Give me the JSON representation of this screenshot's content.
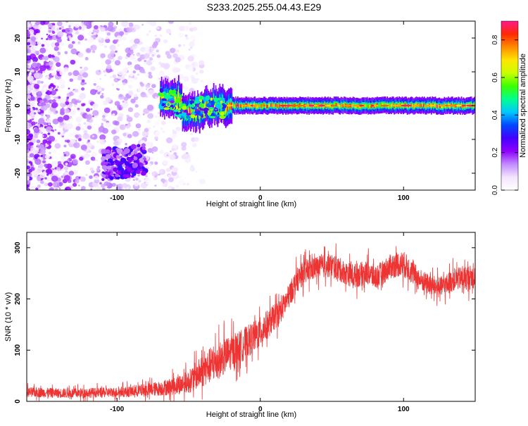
{
  "title": "S233.2025.255.04.43.E29",
  "chart_data": [
    {
      "type": "heatmap",
      "name": "spectrogram",
      "xlabel": "Height of straight line (km)",
      "ylabel": "Frequency (Hz)",
      "xlim": [
        -163,
        150
      ],
      "ylim": [
        -25,
        25
      ],
      "xticks": [
        -100,
        0,
        100
      ],
      "yticks": [
        -20,
        -10,
        0,
        10,
        20
      ],
      "xticklabels": [
        "-100",
        "0",
        "100"
      ],
      "yticklabels": [
        "-20",
        "-10",
        "0",
        "10",
        "20"
      ],
      "colorbar": {
        "label": "Normalized spectral amplitude",
        "range": [
          0,
          0.9
        ],
        "ticks": [
          0.0,
          0.2,
          0.4,
          0.6,
          0.8
        ],
        "ticklabels": [
          "0.0",
          "0.2",
          "0.4",
          "0.6",
          "0.8"
        ],
        "colormap": [
          "#ffffff",
          "#f3e4ff",
          "#c28bff",
          "#8f00ff",
          "#4400ff",
          "#0048ff",
          "#00c8ff",
          "#00ff90",
          "#3cff00",
          "#c8ff00",
          "#ffe600",
          "#ff8c00",
          "#ff2a00",
          "#ff1a8c"
        ]
      },
      "features": [
        {
          "label": "noise",
          "x": [
            -163,
            -60
          ],
          "freq": [
            -25,
            25
          ],
          "amplitude": 0.1
        },
        {
          "label": "dense cluster",
          "x": [
            -110,
            -80
          ],
          "freq": [
            -22,
            -13
          ],
          "amplitude": 0.18
        },
        {
          "label": "signal",
          "x": [
            -70,
            150
          ],
          "freq": [
            -5,
            4
          ],
          "peak_freq": 0,
          "amplitude": 0.75
        }
      ]
    },
    {
      "type": "line",
      "name": "snr",
      "xlabel": "Height of straight line (km)",
      "ylabel": "SNR (10 * v/v)",
      "xlim": [
        -163,
        150
      ],
      "ylim": [
        0,
        330
      ],
      "xticks": [
        -100,
        0,
        100
      ],
      "yticks": [
        0,
        100,
        200,
        300
      ],
      "xticklabels": [
        "-100",
        "0",
        "100"
      ],
      "yticklabels": [
        "0",
        "100",
        "200",
        "300"
      ],
      "color": "#ee3333",
      "series": [
        {
          "name": "SNR",
          "x": [
            -163,
            -150,
            -140,
            -130,
            -120,
            -110,
            -100,
            -90,
            -80,
            -70,
            -60,
            -50,
            -45,
            -40,
            -35,
            -30,
            -25,
            -20,
            -15,
            -10,
            -5,
            0,
            5,
            10,
            15,
            20,
            25,
            30,
            35,
            40,
            45,
            50,
            55,
            60,
            65,
            70,
            75,
            80,
            85,
            90,
            95,
            100,
            105,
            110,
            115,
            120,
            125,
            130,
            135,
            140,
            145,
            150
          ],
          "values": [
            18,
            17,
            16,
            16,
            17,
            17,
            18,
            19,
            22,
            25,
            30,
            38,
            50,
            60,
            70,
            78,
            88,
            96,
            105,
            115,
            125,
            135,
            150,
            165,
            180,
            205,
            235,
            250,
            258,
            262,
            264,
            265,
            258,
            250,
            245,
            248,
            252,
            242,
            250,
            262,
            268,
            268,
            255,
            240,
            232,
            226,
            222,
            228,
            238,
            240,
            242,
            244
          ],
          "noise": [
            12,
            12,
            12,
            12,
            12,
            12,
            12,
            14,
            16,
            18,
            22,
            28,
            34,
            40,
            44,
            46,
            44,
            42,
            40,
            40,
            38,
            38,
            36,
            32,
            30,
            30,
            30,
            30,
            30,
            28,
            28,
            30,
            30,
            28,
            30,
            30,
            30,
            30,
            30,
            30,
            32,
            32,
            30,
            28,
            26,
            26,
            26,
            26,
            28,
            28,
            30,
            30
          ]
        }
      ]
    }
  ]
}
